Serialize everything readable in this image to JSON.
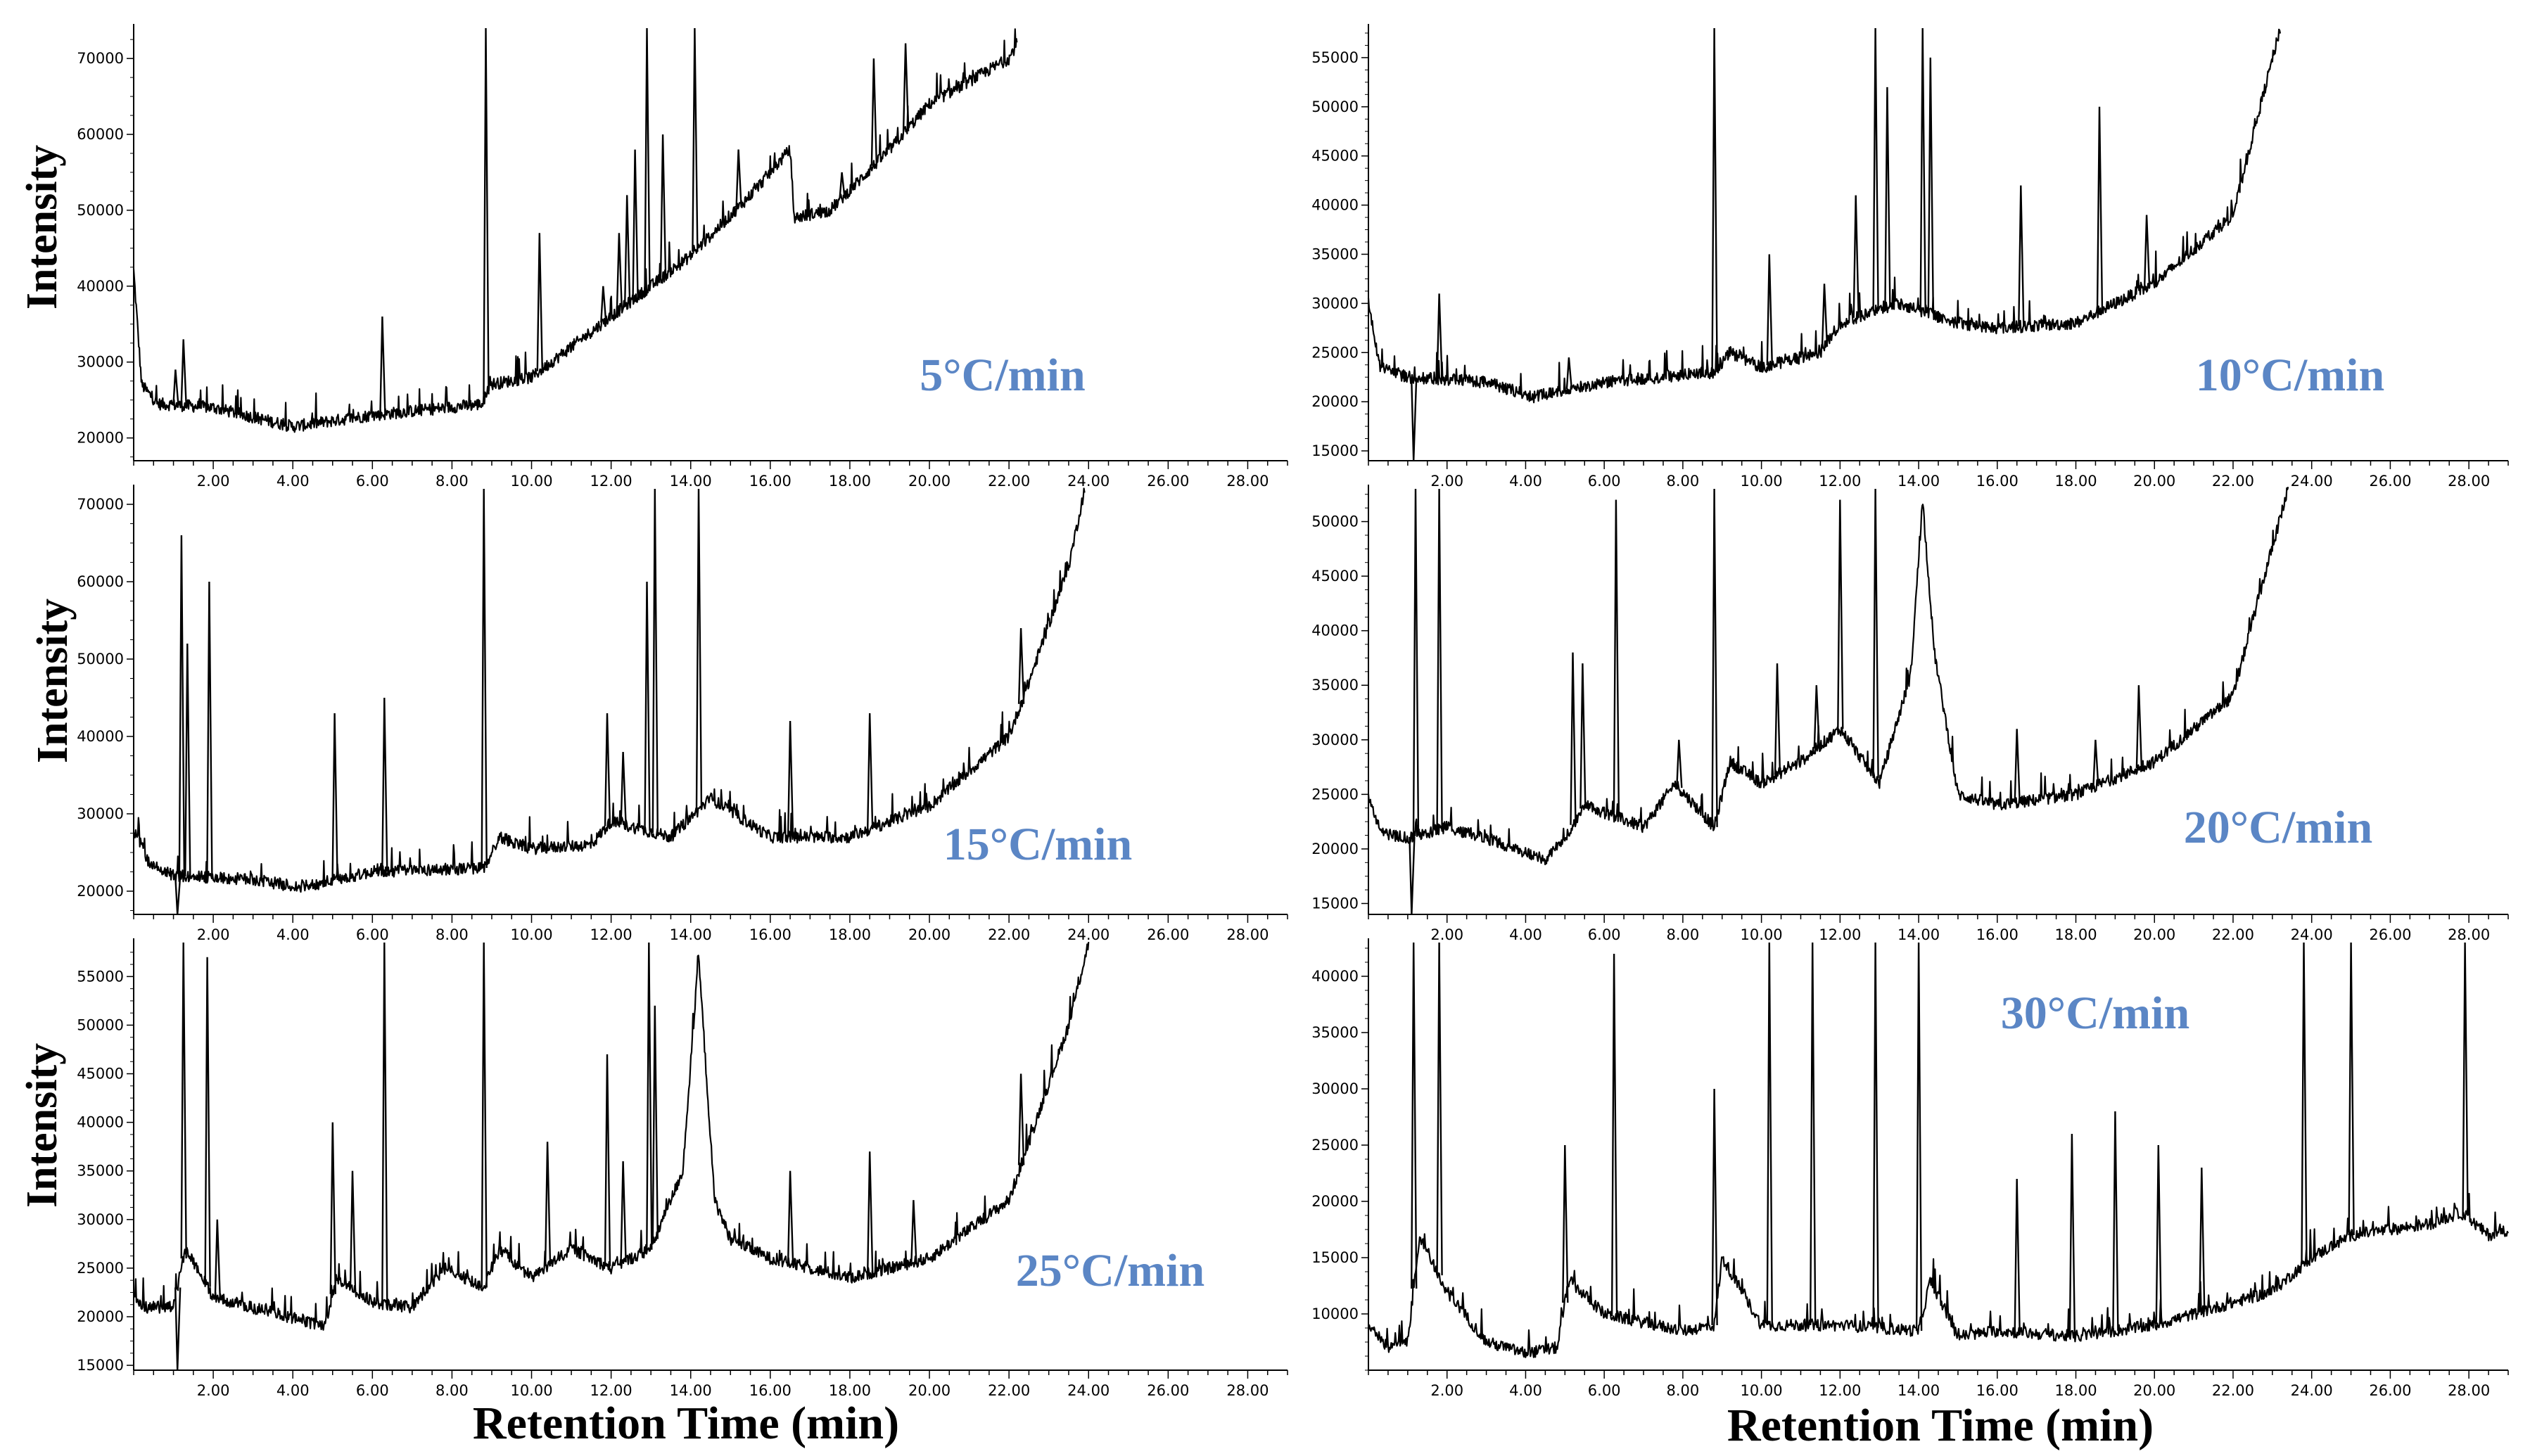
{
  "colors": {
    "trace": "#000000",
    "rate_label": "#5b86c5",
    "axis": "#000000"
  },
  "chart_data": [
    {
      "type": "line",
      "title": "5°C/min",
      "xlabel": "",
      "ylabel": "Intensity",
      "xlim": [
        0,
        29
      ],
      "ylim": [
        17000,
        74000
      ],
      "x_ticks": [
        "2.00",
        "4.00",
        "6.00",
        "8.00",
        "10.00",
        "12.00",
        "14.00",
        "16.00",
        "18.00",
        "20.00",
        "22.00",
        "24.00",
        "26.00",
        "28.00"
      ],
      "y_ticks": [
        "20000",
        "30000",
        "40000",
        "50000",
        "60000",
        "70000"
      ],
      "trace_end_min": 22.2,
      "baseline": [
        [
          0,
          42000
        ],
        [
          0.2,
          27000
        ],
        [
          0.6,
          24500
        ],
        [
          2,
          24000
        ],
        [
          4,
          21500
        ],
        [
          6,
          23000
        ],
        [
          8.8,
          24500
        ],
        [
          8.9,
          27000
        ],
        [
          10,
          28000
        ],
        [
          12,
          36000
        ],
        [
          14,
          44000
        ],
        [
          15.5,
          52000
        ],
        [
          16.5,
          58000
        ],
        [
          16.6,
          49000
        ],
        [
          17.5,
          50000
        ],
        [
          19,
          58000
        ],
        [
          20,
          64000
        ],
        [
          22,
          70000
        ],
        [
          22.2,
          72000
        ]
      ],
      "peaks": [
        [
          1.05,
          29000
        ],
        [
          1.25,
          33000
        ],
        [
          6.25,
          36000
        ],
        [
          8.85,
          74000
        ],
        [
          10.2,
          47000
        ],
        [
          11.8,
          40000
        ],
        [
          12.2,
          47000
        ],
        [
          12.4,
          52000
        ],
        [
          12.6,
          58000
        ],
        [
          12.9,
          74000
        ],
        [
          13.3,
          60000
        ],
        [
          14.1,
          74000
        ],
        [
          15.2,
          58000
        ],
        [
          17.8,
          55000
        ],
        [
          18.6,
          70000
        ],
        [
          19.4,
          72000
        ]
      ]
    },
    {
      "type": "line",
      "title": "10°C/min",
      "xlabel": "",
      "ylabel": "",
      "xlim": [
        0,
        29
      ],
      "ylim": [
        14000,
        58000
      ],
      "x_ticks": [
        "2.00",
        "4.00",
        "6.00",
        "8.00",
        "10.00",
        "12.00",
        "14.00",
        "16.00",
        "18.00",
        "20.00",
        "22.00",
        "24.00",
        "26.00",
        "28.00"
      ],
      "y_ticks": [
        "15000",
        "20000",
        "25000",
        "30000",
        "35000",
        "40000",
        "45000",
        "50000",
        "55000"
      ],
      "trace_end_min": 23.2,
      "baseline": [
        [
          0,
          30000
        ],
        [
          0.3,
          23500
        ],
        [
          1,
          22500
        ],
        [
          3,
          22000
        ],
        [
          4.2,
          20500
        ],
        [
          6,
          22000
        ],
        [
          8.8,
          23000
        ],
        [
          9.2,
          25000
        ],
        [
          10,
          23500
        ],
        [
          11.5,
          25000
        ],
        [
          12,
          28000
        ],
        [
          13.5,
          30000
        ],
        [
          15,
          28000
        ],
        [
          16,
          27500
        ],
        [
          18,
          28000
        ],
        [
          20,
          32000
        ],
        [
          22,
          39000
        ],
        [
          22.5,
          47000
        ],
        [
          23.2,
          58000
        ]
      ],
      "peaks": [
        [
          1.15,
          14000
        ],
        [
          1.8,
          31000
        ],
        [
          5.1,
          24500
        ],
        [
          8.8,
          58000
        ],
        [
          10.2,
          35000
        ],
        [
          11.6,
          32000
        ],
        [
          12.4,
          41000
        ],
        [
          12.9,
          58000
        ],
        [
          13.2,
          52000
        ],
        [
          14.1,
          58000
        ],
        [
          14.3,
          55000
        ],
        [
          16.6,
          42000
        ],
        [
          18.6,
          50000
        ],
        [
          19.8,
          39000
        ]
      ]
    },
    {
      "type": "line",
      "title": "15°C/min",
      "xlabel": "",
      "ylabel": "Intensity",
      "xlim": [
        0,
        29
      ],
      "ylim": [
        17000,
        72000
      ],
      "x_ticks": [
        "2.00",
        "4.00",
        "6.00",
        "8.00",
        "10.00",
        "12.00",
        "14.00",
        "16.00",
        "18.00",
        "20.00",
        "22.00",
        "24.00",
        "26.00",
        "28.00"
      ],
      "y_ticks": [
        "20000",
        "30000",
        "40000",
        "50000",
        "60000",
        "70000"
      ],
      "trace_end_min": 23.9,
      "baseline": [
        [
          0,
          28000
        ],
        [
          0.4,
          23500
        ],
        [
          1,
          22000
        ],
        [
          3,
          21500
        ],
        [
          4.2,
          20500
        ],
        [
          6,
          22500
        ],
        [
          8.8,
          23000
        ],
        [
          9.2,
          27000
        ],
        [
          10,
          25500
        ],
        [
          11.5,
          26000
        ],
        [
          12,
          29000
        ],
        [
          13.5,
          27000
        ],
        [
          14.5,
          32000
        ],
        [
          16,
          27000
        ],
        [
          18,
          27000
        ],
        [
          20,
          31000
        ],
        [
          22,
          40000
        ],
        [
          22.5,
          47000
        ],
        [
          23.5,
          62000
        ],
        [
          23.9,
          72000
        ]
      ],
      "peaks": [
        [
          1.1,
          17000
        ],
        [
          1.2,
          66000
        ],
        [
          1.35,
          52000
        ],
        [
          1.9,
          60000
        ],
        [
          5.05,
          43000
        ],
        [
          6.3,
          45000
        ],
        [
          8.8,
          72000
        ],
        [
          11.9,
          43000
        ],
        [
          12.3,
          38000
        ],
        [
          12.9,
          60000
        ],
        [
          13.1,
          72000
        ],
        [
          14.2,
          72000
        ],
        [
          16.5,
          42000
        ],
        [
          18.5,
          43000
        ],
        [
          22.3,
          54000
        ]
      ]
    },
    {
      "type": "line",
      "title": "20°C/min",
      "xlabel": "",
      "ylabel": "",
      "xlim": [
        0,
        29
      ],
      "ylim": [
        14000,
        53000
      ],
      "x_ticks": [
        "2.00",
        "4.00",
        "6.00",
        "8.00",
        "10.00",
        "12.00",
        "14.00",
        "16.00",
        "18.00",
        "20.00",
        "22.00",
        "24.00",
        "26.00",
        "28.00"
      ],
      "y_ticks": [
        "15000",
        "20000",
        "25000",
        "30000",
        "35000",
        "40000",
        "45000",
        "50000"
      ],
      "trace_end_min": 23.4,
      "baseline": [
        [
          0,
          25000
        ],
        [
          0.3,
          21500
        ],
        [
          1,
          21000
        ],
        [
          2,
          22000
        ],
        [
          3,
          21000
        ],
        [
          4.5,
          19000
        ],
        [
          5,
          21000
        ],
        [
          5.5,
          24000
        ],
        [
          7,
          22000
        ],
        [
          7.8,
          26000
        ],
        [
          8.8,
          22000
        ],
        [
          9.2,
          28000
        ],
        [
          10,
          26000
        ],
        [
          11,
          28000
        ],
        [
          12,
          31000
        ],
        [
          13,
          26000
        ],
        [
          13.8,
          36000
        ],
        [
          14.1,
          52000
        ],
        [
          14.4,
          38000
        ],
        [
          15,
          25000
        ],
        [
          16,
          24000
        ],
        [
          18,
          25000
        ],
        [
          20,
          28000
        ],
        [
          22,
          34000
        ],
        [
          22.5,
          41000
        ],
        [
          23.4,
          53000
        ]
      ],
      "peaks": [
        [
          1.1,
          14000
        ],
        [
          1.2,
          53000
        ],
        [
          1.8,
          53000
        ],
        [
          5.2,
          38000
        ],
        [
          5.45,
          37000
        ],
        [
          6.3,
          52000
        ],
        [
          7.9,
          30000
        ],
        [
          8.8,
          53000
        ],
        [
          10.4,
          37000
        ],
        [
          11.4,
          35000
        ],
        [
          12,
          52000
        ],
        [
          12.9,
          53000
        ],
        [
          16.5,
          31000
        ],
        [
          18.5,
          30000
        ],
        [
          19.6,
          35000
        ]
      ]
    },
    {
      "type": "line",
      "title": "25°C/min",
      "xlabel": "Retention Time (min)",
      "ylabel": "Intensity",
      "xlim": [
        0,
        29
      ],
      "ylim": [
        14500,
        58500
      ],
      "x_ticks": [
        "2.00",
        "4.00",
        "6.00",
        "8.00",
        "10.00",
        "12.00",
        "14.00",
        "16.00",
        "18.00",
        "20.00",
        "22.00",
        "24.00",
        "26.00",
        "28.00"
      ],
      "y_ticks": [
        "15000",
        "20000",
        "25000",
        "30000",
        "35000",
        "40000",
        "45000",
        "50000",
        "55000"
      ],
      "trace_end_min": 24.0,
      "baseline": [
        [
          0,
          22000
        ],
        [
          0.3,
          21000
        ],
        [
          1,
          21000
        ],
        [
          1.3,
          27000
        ],
        [
          2,
          22000
        ],
        [
          4.8,
          19000
        ],
        [
          5.1,
          24000
        ],
        [
          6,
          21500
        ],
        [
          7,
          21000
        ],
        [
          7.8,
          25000
        ],
        [
          8.8,
          23000
        ],
        [
          9.2,
          27000
        ],
        [
          10,
          24000
        ],
        [
          11,
          27000
        ],
        [
          12,
          25000
        ],
        [
          13,
          27000
        ],
        [
          13.8,
          35000
        ],
        [
          14.2,
          57000
        ],
        [
          14.6,
          32000
        ],
        [
          15,
          28000
        ],
        [
          16,
          26000
        ],
        [
          18,
          24000
        ],
        [
          20,
          26000
        ],
        [
          22,
          32000
        ],
        [
          22.5,
          38000
        ],
        [
          23.5,
          50000
        ],
        [
          24,
          58500
        ]
      ],
      "peaks": [
        [
          1.1,
          14500
        ],
        [
          1.25,
          58500
        ],
        [
          1.85,
          57000
        ],
        [
          2.1,
          30000
        ],
        [
          5.0,
          40000
        ],
        [
          5.5,
          35000
        ],
        [
          6.3,
          58500
        ],
        [
          8.8,
          58500
        ],
        [
          10.4,
          38000
        ],
        [
          11.9,
          47000
        ],
        [
          12.3,
          36000
        ],
        [
          12.95,
          58500
        ],
        [
          13.1,
          52000
        ],
        [
          16.5,
          35000
        ],
        [
          18.5,
          37000
        ],
        [
          19.6,
          32000
        ],
        [
          22.3,
          45000
        ]
      ]
    },
    {
      "type": "line",
      "title": "30°C/min",
      "xlabel": "Retention Time (min)",
      "ylabel": "",
      "xlim": [
        0,
        29
      ],
      "ylim": [
        5000,
        43000
      ],
      "x_ticks": [
        "2.00",
        "4.00",
        "6.00",
        "8.00",
        "10.00",
        "12.00",
        "14.00",
        "16.00",
        "18.00",
        "20.00",
        "22.00",
        "24.00",
        "26.00",
        "28.00"
      ],
      "y_ticks": [
        "10000",
        "15000",
        "20000",
        "25000",
        "30000",
        "35000",
        "40000"
      ],
      "trace_end_min": 29.0,
      "baseline": [
        [
          0,
          9000
        ],
        [
          0.5,
          7000
        ],
        [
          1,
          7500
        ],
        [
          1.3,
          17000
        ],
        [
          2,
          12000
        ],
        [
          3,
          7500
        ],
        [
          4,
          6500
        ],
        [
          4.8,
          7000
        ],
        [
          5.1,
          13000
        ],
        [
          6,
          10000
        ],
        [
          8,
          8500
        ],
        [
          8.8,
          9000
        ],
        [
          9,
          15000
        ],
        [
          10,
          9000
        ],
        [
          12,
          9000
        ],
        [
          14,
          8500
        ],
        [
          14.3,
          13000
        ],
        [
          15,
          8000
        ],
        [
          16,
          8500
        ],
        [
          18,
          8000
        ],
        [
          20,
          9000
        ],
        [
          22,
          11000
        ],
        [
          23,
          12000
        ],
        [
          24,
          15000
        ],
        [
          25,
          17000
        ],
        [
          27,
          18000
        ],
        [
          27.8,
          19000
        ],
        [
          28.5,
          17000
        ],
        [
          29,
          17500
        ]
      ],
      "peaks": [
        [
          1.15,
          43000
        ],
        [
          1.8,
          43000
        ],
        [
          5.0,
          25000
        ],
        [
          6.25,
          42000
        ],
        [
          8.8,
          30000
        ],
        [
          10.2,
          43000
        ],
        [
          11.3,
          43000
        ],
        [
          12.9,
          43000
        ],
        [
          14.0,
          43000
        ],
        [
          16.5,
          22000
        ],
        [
          17.9,
          26000
        ],
        [
          19.0,
          28000
        ],
        [
          20.1,
          25000
        ],
        [
          21.2,
          23000
        ],
        [
          23.8,
          43000
        ],
        [
          25.0,
          43000
        ],
        [
          27.9,
          43000
        ]
      ]
    }
  ]
}
